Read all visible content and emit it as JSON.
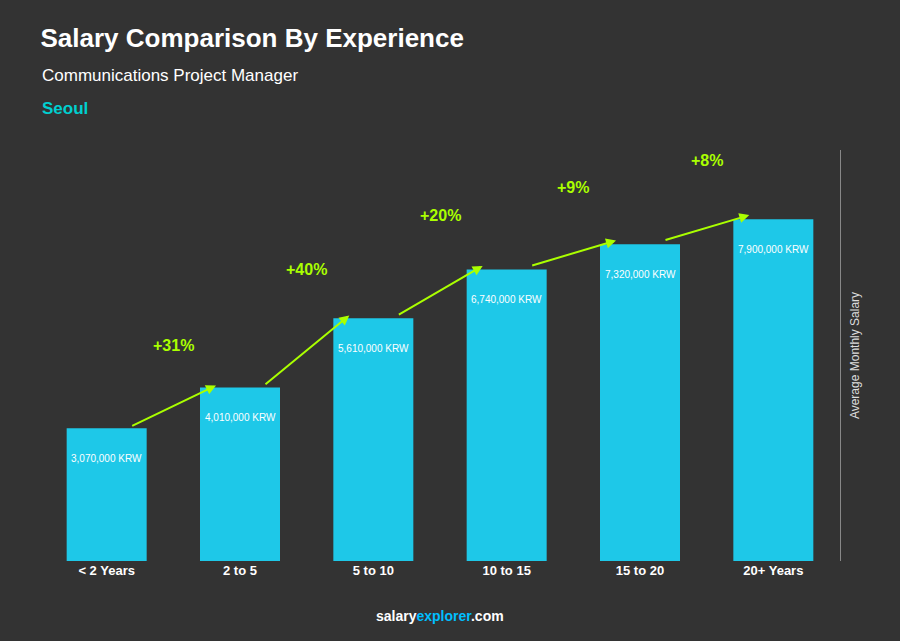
{
  "chart_data": {
    "type": "bar",
    "title": "Salary Comparison By Experience",
    "subtitle": "Communications Project Manager",
    "city": "Seoul",
    "ylabel": "Average Monthly Salary",
    "categories": [
      "< 2 Years",
      "2 to 5",
      "5 to 10",
      "10 to 15",
      "15 to 20",
      "20+ Years"
    ],
    "values": [
      3070000,
      4010000,
      5610000,
      6740000,
      7320000,
      7900000
    ],
    "value_labels": [
      "3,070,000 KRW",
      "4,010,000 KRW",
      "5,610,000 KRW",
      "6,740,000 KRW",
      "7,320,000 KRW",
      "7,900,000 KRW"
    ],
    "data_labels": true,
    "color": "#1EC8E8",
    "ylim": [
      0,
      9500000
    ],
    "tick_labels": "x",
    "grid": false,
    "annotations": [
      {
        "text": "+31%",
        "from": "< 2 Years",
        "to": "2 to 5",
        "color": "#AAFF00"
      },
      {
        "text": "+40%",
        "from": "2 to 5",
        "to": "5 to 10",
        "color": "#AAFF00"
      },
      {
        "text": "+20%",
        "from": "5 to 10",
        "to": "10 to 15",
        "color": "#AAFF00"
      },
      {
        "text": "+9%",
        "from": "10 to 15",
        "to": "15 to 20",
        "color": "#AAFF00"
      },
      {
        "text": "+8%",
        "from": "15 to 20",
        "to": "20+ Years",
        "color": "#AAFF00"
      }
    ],
    "footer": [
      {
        "text": "salary",
        "color": "#FFFFFF"
      },
      {
        "text": "explorer",
        "color": "#00BFFF"
      },
      {
        "text": ".com",
        "color": "#FFFFFF"
      }
    ]
  }
}
